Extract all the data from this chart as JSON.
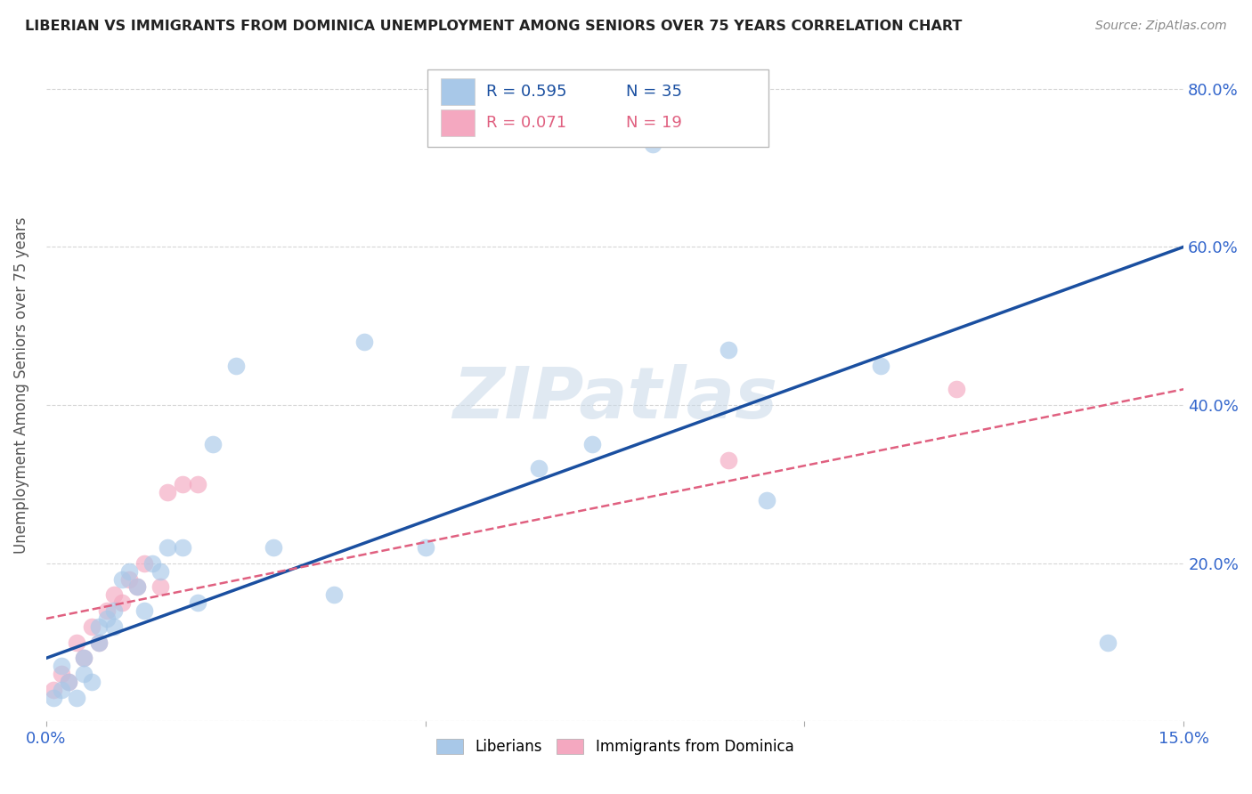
{
  "title": "LIBERIAN VS IMMIGRANTS FROM DOMINICA UNEMPLOYMENT AMONG SENIORS OVER 75 YEARS CORRELATION CHART",
  "source": "Source: ZipAtlas.com",
  "ylabel": "Unemployment Among Seniors over 75 years",
  "xlim": [
    0.0,
    0.15
  ],
  "ylim": [
    0.0,
    0.85
  ],
  "liberian_color": "#a8c8e8",
  "dominica_color": "#f4a8c0",
  "liberian_R": 0.595,
  "liberian_N": 35,
  "dominica_R": 0.071,
  "dominica_N": 19,
  "liberian_line_color": "#1a4fa0",
  "dominica_line_color": "#e06080",
  "watermark": "ZIPatlas",
  "liberian_x": [
    0.001,
    0.002,
    0.002,
    0.003,
    0.004,
    0.005,
    0.005,
    0.006,
    0.007,
    0.007,
    0.008,
    0.009,
    0.009,
    0.01,
    0.011,
    0.012,
    0.013,
    0.014,
    0.015,
    0.016,
    0.018,
    0.02,
    0.022,
    0.025,
    0.03,
    0.038,
    0.042,
    0.05,
    0.065,
    0.072,
    0.08,
    0.09,
    0.095,
    0.11,
    0.14
  ],
  "liberian_y": [
    0.03,
    0.04,
    0.07,
    0.05,
    0.03,
    0.06,
    0.08,
    0.05,
    0.12,
    0.1,
    0.13,
    0.12,
    0.14,
    0.18,
    0.19,
    0.17,
    0.14,
    0.2,
    0.19,
    0.22,
    0.22,
    0.15,
    0.35,
    0.45,
    0.22,
    0.16,
    0.48,
    0.22,
    0.32,
    0.35,
    0.73,
    0.47,
    0.28,
    0.45,
    0.1
  ],
  "dominica_x": [
    0.001,
    0.002,
    0.003,
    0.004,
    0.005,
    0.006,
    0.007,
    0.008,
    0.009,
    0.01,
    0.011,
    0.012,
    0.013,
    0.015,
    0.016,
    0.018,
    0.02,
    0.09,
    0.12
  ],
  "dominica_y": [
    0.04,
    0.06,
    0.05,
    0.1,
    0.08,
    0.12,
    0.1,
    0.14,
    0.16,
    0.15,
    0.18,
    0.17,
    0.2,
    0.17,
    0.29,
    0.3,
    0.3,
    0.33,
    0.42
  ],
  "liberian_line_x": [
    0.0,
    0.15
  ],
  "liberian_line_y": [
    0.08,
    0.6
  ],
  "dominica_line_x": [
    0.0,
    0.15
  ],
  "dominica_line_y": [
    0.13,
    0.42
  ]
}
